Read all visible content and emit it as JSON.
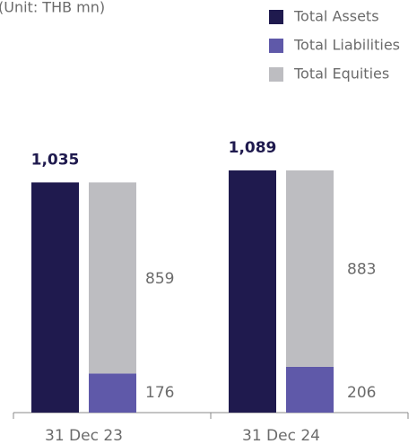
{
  "chart_data": {
    "type": "bar",
    "title": "(Unit: THB mn)",
    "categories": [
      "31 Dec 23",
      "31 Dec 24"
    ],
    "series": [
      {
        "name": "Total Assets",
        "color": "#1f1a4e",
        "values": [
          1035,
          1089
        ],
        "value_labels": [
          "1,035",
          "1,089"
        ]
      },
      {
        "name": "Total Liabilities",
        "color": "#5f59a9",
        "values": [
          176,
          206
        ]
      },
      {
        "name": "Total Equities",
        "color": "#bdbdc1",
        "values": [
          859,
          883
        ]
      }
    ],
    "legend": "top-right"
  }
}
